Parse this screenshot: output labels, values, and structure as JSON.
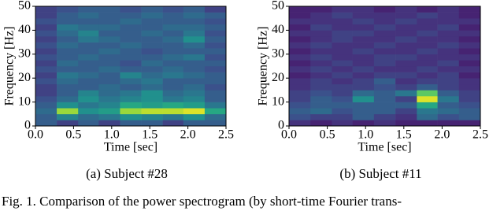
{
  "chart_data": [
    {
      "type": "heatmap",
      "caption": "(a) Subject #28",
      "xlabel": "Time [sec]",
      "ylabel": "Frequency [Hz]",
      "xbins": [
        0,
        0.28,
        0.56,
        0.83,
        1.11,
        1.39,
        1.67,
        1.94,
        2.22,
        2.5
      ],
      "ybins": [
        0,
        2.5,
        5,
        7.5,
        10,
        12.5,
        15,
        17.5,
        20,
        22.5,
        25,
        27.5,
        30,
        32.5,
        35,
        37.5,
        40,
        42.5,
        45,
        47.5,
        50
      ],
      "xlim": [
        0,
        2.5
      ],
      "ylim": [
        0,
        50
      ],
      "colormap": "viridis",
      "zlim": [
        0,
        1
      ],
      "xticks": [
        {
          "value": 0,
          "label": "0.0"
        },
        0.5,
        {
          "value": 1,
          "label": "1.0"
        },
        1.5,
        {
          "value": 2,
          "label": "2.0"
        },
        2.5
      ],
      "yticks": [
        0,
        10,
        20,
        30,
        40,
        50
      ],
      "z": [
        [
          0.3,
          0.2,
          0.3,
          0.2,
          0.3,
          0.3,
          0.2,
          0.3,
          0.3
        ],
        [
          0.3,
          0.45,
          0.35,
          0.4,
          0.5,
          0.45,
          0.4,
          0.5,
          0.35
        ],
        [
          0.35,
          0.85,
          0.5,
          0.55,
          0.85,
          0.9,
          0.9,
          0.95,
          0.6
        ],
        [
          0.3,
          0.5,
          0.4,
          0.45,
          0.6,
          0.55,
          0.6,
          0.55,
          0.4
        ],
        [
          0.25,
          0.35,
          0.5,
          0.4,
          0.45,
          0.5,
          0.4,
          0.45,
          0.3
        ],
        [
          0.2,
          0.3,
          0.45,
          0.35,
          0.4,
          0.5,
          0.35,
          0.4,
          0.3
        ],
        [
          0.2,
          0.3,
          0.3,
          0.35,
          0.3,
          0.35,
          0.3,
          0.35,
          0.25
        ],
        [
          0.25,
          0.35,
          0.3,
          0.3,
          0.35,
          0.4,
          0.3,
          0.3,
          0.3
        ],
        [
          0.2,
          0.4,
          0.35,
          0.3,
          0.45,
          0.35,
          0.4,
          0.35,
          0.3
        ],
        [
          0.25,
          0.3,
          0.3,
          0.35,
          0.3,
          0.3,
          0.35,
          0.3,
          0.25
        ],
        [
          0.2,
          0.35,
          0.3,
          0.3,
          0.25,
          0.35,
          0.3,
          0.3,
          0.3
        ],
        [
          0.25,
          0.3,
          0.35,
          0.3,
          0.3,
          0.3,
          0.35,
          0.4,
          0.25
        ],
        [
          0.2,
          0.3,
          0.3,
          0.35,
          0.3,
          0.25,
          0.3,
          0.3,
          0.3
        ],
        [
          0.25,
          0.35,
          0.3,
          0.3,
          0.35,
          0.3,
          0.3,
          0.35,
          0.25
        ],
        [
          0.2,
          0.3,
          0.4,
          0.35,
          0.3,
          0.3,
          0.35,
          0.5,
          0.3
        ],
        [
          0.25,
          0.35,
          0.45,
          0.3,
          0.3,
          0.35,
          0.3,
          0.4,
          0.25
        ],
        [
          0.2,
          0.4,
          0.35,
          0.35,
          0.3,
          0.3,
          0.35,
          0.35,
          0.3
        ],
        [
          0.25,
          0.3,
          0.3,
          0.3,
          0.35,
          0.3,
          0.3,
          0.3,
          0.25
        ],
        [
          0.2,
          0.3,
          0.35,
          0.3,
          0.3,
          0.35,
          0.3,
          0.35,
          0.3
        ],
        [
          0.2,
          0.25,
          0.3,
          0.3,
          0.25,
          0.3,
          0.25,
          0.3,
          0.2
        ]
      ]
    },
    {
      "type": "heatmap",
      "caption": "(b) Subject #11",
      "xlabel": "Time [sec]",
      "ylabel": "Frequency [Hz]",
      "xbins": [
        0,
        0.28,
        0.56,
        0.83,
        1.11,
        1.39,
        1.67,
        1.94,
        2.22,
        2.5
      ],
      "ybins": [
        0,
        2.5,
        5,
        7.5,
        10,
        12.5,
        15,
        17.5,
        20,
        22.5,
        25,
        27.5,
        30,
        32.5,
        35,
        37.5,
        40,
        42.5,
        45,
        47.5,
        50
      ],
      "xlim": [
        0,
        2.5
      ],
      "ylim": [
        0,
        50
      ],
      "colormap": "viridis",
      "zlim": [
        0,
        1
      ],
      "xticks": [
        {
          "value": 0,
          "label": "0.0"
        },
        0.5,
        {
          "value": 1,
          "label": "1.0"
        },
        1.5,
        {
          "value": 2,
          "label": "2.0"
        },
        2.5
      ],
      "yticks": [
        0,
        10,
        20,
        30,
        40,
        50
      ],
      "z": [
        [
          0.15,
          0.1,
          0.15,
          0.1,
          0.15,
          0.1,
          0.1,
          0.1,
          0.1
        ],
        [
          0.25,
          0.2,
          0.2,
          0.3,
          0.2,
          0.15,
          0.35,
          0.25,
          0.3
        ],
        [
          0.3,
          0.35,
          0.25,
          0.3,
          0.3,
          0.2,
          0.4,
          0.35,
          0.3
        ],
        [
          0.25,
          0.3,
          0.3,
          0.3,
          0.3,
          0.3,
          0.6,
          0.3,
          0.25
        ],
        [
          0.2,
          0.3,
          0.25,
          0.5,
          0.3,
          0.2,
          0.95,
          0.4,
          0.2
        ],
        [
          0.2,
          0.25,
          0.2,
          0.35,
          0.3,
          0.4,
          0.75,
          0.3,
          0.2
        ],
        [
          0.15,
          0.2,
          0.2,
          0.2,
          0.25,
          0.2,
          0.3,
          0.2,
          0.15
        ],
        [
          0.15,
          0.2,
          0.15,
          0.2,
          0.3,
          0.15,
          0.2,
          0.2,
          0.15
        ],
        [
          0.1,
          0.15,
          0.2,
          0.15,
          0.2,
          0.2,
          0.15,
          0.2,
          0.1
        ],
        [
          0.15,
          0.2,
          0.15,
          0.2,
          0.15,
          0.15,
          0.2,
          0.15,
          0.15
        ],
        [
          0.1,
          0.15,
          0.2,
          0.15,
          0.2,
          0.15,
          0.15,
          0.2,
          0.1
        ],
        [
          0.15,
          0.2,
          0.15,
          0.15,
          0.2,
          0.2,
          0.15,
          0.15,
          0.15
        ],
        [
          0.1,
          0.15,
          0.15,
          0.2,
          0.15,
          0.15,
          0.2,
          0.15,
          0.1
        ],
        [
          0.15,
          0.2,
          0.15,
          0.15,
          0.2,
          0.15,
          0.15,
          0.2,
          0.15
        ],
        [
          0.1,
          0.15,
          0.2,
          0.15,
          0.15,
          0.2,
          0.15,
          0.15,
          0.1
        ],
        [
          0.15,
          0.15,
          0.2,
          0.2,
          0.15,
          0.15,
          0.2,
          0.15,
          0.15
        ],
        [
          0.1,
          0.2,
          0.15,
          0.15,
          0.2,
          0.15,
          0.15,
          0.2,
          0.1
        ],
        [
          0.15,
          0.15,
          0.15,
          0.2,
          0.15,
          0.2,
          0.15,
          0.15,
          0.15
        ],
        [
          0.1,
          0.15,
          0.2,
          0.15,
          0.15,
          0.15,
          0.2,
          0.15,
          0.1
        ],
        [
          0.1,
          0.1,
          0.15,
          0.15,
          0.1,
          0.15,
          0.1,
          0.15,
          0.1
        ]
      ]
    }
  ],
  "figure_caption": "Fig. 1.  Comparison of the power spectrogram (by short-time Fourier trans-"
}
